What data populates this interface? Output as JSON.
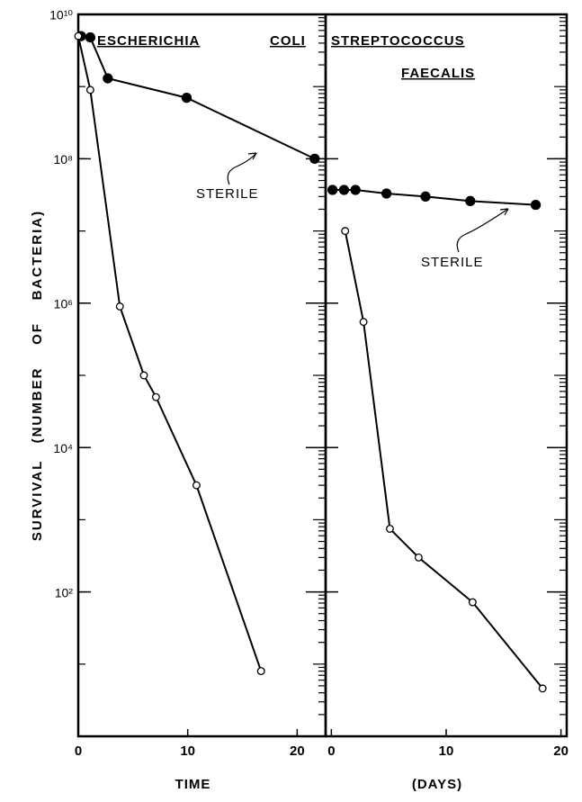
{
  "chart_data": [
    {
      "type": "scatter",
      "title": [
        "ESCHERICHIA",
        "COLI"
      ],
      "xlabel": "TIME",
      "ylabel": "SURVIVAL   (NUMBER    OF    BACTERIA)",
      "annotation": "STERILE",
      "log_y": true,
      "xlim": [
        0,
        22.6
      ],
      "xticks": [
        0,
        10,
        20
      ],
      "ylim": [
        1,
        10000000000.0
      ],
      "yticks": [
        {
          "value": 100.0,
          "label": "10²"
        },
        {
          "value": 10000.0,
          "label": "10⁴"
        },
        {
          "value": 1000000.0,
          "label": "10⁶"
        },
        {
          "value": 100000000.0,
          "label": "10⁸"
        },
        {
          "value": 10000000000.0,
          "label": "10¹⁰"
        }
      ],
      "series": [
        {
          "color": "#000000",
          "filled": true,
          "x": [
            0.25,
            1.1,
            2.7,
            9.9,
            21.6
          ],
          "values": [
            5000000000.0,
            4800000000.0,
            1300000000.0,
            700000000.0,
            100000000.0
          ]
        },
        {
          "color": "#000000",
          "filled": false,
          "x": [
            0,
            1.1,
            3.8,
            6.0,
            7.1,
            10.8,
            16.7
          ],
          "values": [
            5000000000.0,
            900000000.0,
            900000.0,
            100000.0,
            50000.0,
            3000.0,
            8
          ]
        }
      ]
    },
    {
      "type": "scatter",
      "title": [
        "STREPTOCOCCUS",
        "FAECALIS"
      ],
      "xlabel": "(DAYS)",
      "annotation": "STERILE",
      "log_y": true,
      "xlim": [
        -0.5,
        20.5
      ],
      "xticks": [
        0,
        10,
        20
      ],
      "ylim": [
        1,
        10000000000.0
      ],
      "yticks": [
        100.0,
        10000.0,
        1000000.0,
        100000000.0,
        10000000000.0
      ],
      "series": [
        {
          "color": "#000000",
          "filled": true,
          "x": [
            0.1,
            1.1,
            2.1,
            4.8,
            8.2,
            12.1,
            17.8
          ],
          "values": [
            37000000.0,
            37000000.0,
            37000000.0,
            33000000.0,
            30000000.0,
            26000000.0,
            23000000.0
          ]
        },
        {
          "color": "#000000",
          "filled": false,
          "x": [
            1.2,
            2.8,
            5.1,
            7.6,
            12.3,
            18.4
          ],
          "values": [
            10000000.0,
            550000.0,
            750,
            300,
            72,
            4.6
          ]
        }
      ]
    }
  ]
}
